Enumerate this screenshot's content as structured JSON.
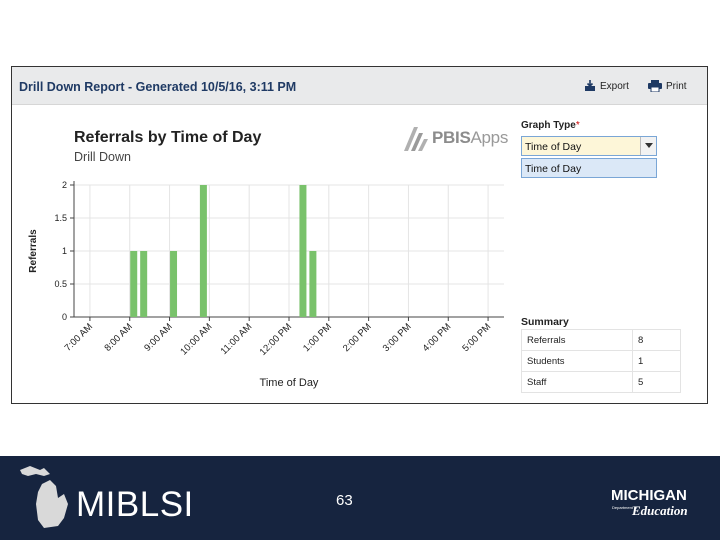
{
  "report": {
    "title": "Drill Down Report - Generated 10/5/16, 3:11 PM",
    "export_label": "Export",
    "print_label": "Print"
  },
  "logo": {
    "text_bold": "PBIS",
    "text_light": "Apps"
  },
  "graph_type": {
    "label": "Graph Type",
    "required_mark": "*",
    "selected": "Time of Day",
    "options": [
      "Time of Day"
    ]
  },
  "summary": {
    "title": "Summary",
    "rows": [
      {
        "label": "Referrals",
        "value": "8"
      },
      {
        "label": "Students",
        "value": "1"
      },
      {
        "label": "Staff",
        "value": "5"
      }
    ]
  },
  "chart_data": {
    "type": "bar",
    "title": "Referrals by Time of Day",
    "subtitle": "Drill Down",
    "xlabel": "Time of Day",
    "ylabel": "Referrals",
    "ylim": [
      0,
      2
    ],
    "yticks": [
      0,
      0.5,
      1,
      1.5,
      2
    ],
    "ytick_labels": [
      "0",
      "0.5",
      "1",
      "1.5",
      "2"
    ],
    "x_tick_labels": [
      "7:00 AM",
      "8:00 AM",
      "9:00 AM",
      "10:00 AM",
      "11:00 AM",
      "12:00 PM",
      "1:00 PM",
      "2:00 PM",
      "3:00 PM",
      "4:00 PM",
      "5:00 PM"
    ],
    "x_hours": [
      7,
      8,
      9,
      10,
      11,
      12,
      13,
      14,
      15,
      16,
      17
    ],
    "x_range_hours": [
      6.6,
      17.4
    ],
    "bars": [
      {
        "hour": 8.1,
        "value": 1
      },
      {
        "hour": 8.35,
        "value": 1
      },
      {
        "hour": 9.1,
        "value": 1
      },
      {
        "hour": 9.85,
        "value": 2
      },
      {
        "hour": 12.35,
        "value": 2
      },
      {
        "hour": 12.6,
        "value": 1
      }
    ],
    "bar_color": "#79c26b",
    "grid": true
  },
  "footer": {
    "brand": "MIBLSI",
    "page_number": "63",
    "partner_top": "MICHIGAN",
    "partner_small": "Department of",
    "partner_bottom": "Education"
  }
}
